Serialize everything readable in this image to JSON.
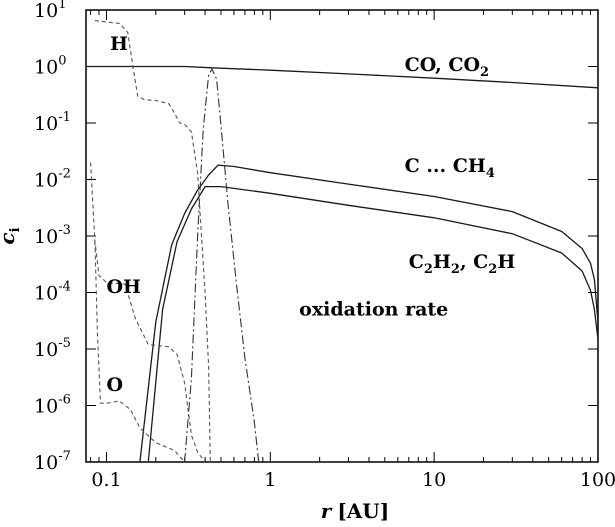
{
  "chart_data": {
    "type": "line",
    "title": "",
    "xlabel": {
      "var": "r",
      "unit": "[AU]"
    },
    "ylabel": {
      "base": "c",
      "sub": "i"
    },
    "xscale": "log",
    "yscale": "log",
    "xlim": [
      0.075,
      100
    ],
    "ylim": [
      1e-07,
      10
    ],
    "grid": false,
    "legend": "none",
    "x_ticks": [
      {
        "value": 0.1,
        "label": "0.1"
      },
      {
        "value": 1,
        "label": "1"
      },
      {
        "value": 10,
        "label": "10"
      },
      {
        "value": 100,
        "label": "100"
      }
    ],
    "y_ticks": [
      {
        "value": 10,
        "base": "10",
        "exp": "1"
      },
      {
        "value": 1,
        "base": "10",
        "exp": "0"
      },
      {
        "value": 0.1,
        "base": "10",
        "exp": "-1"
      },
      {
        "value": 0.01,
        "base": "10",
        "exp": "-2"
      },
      {
        "value": 0.001,
        "base": "10",
        "exp": "-3"
      },
      {
        "value": 0.0001,
        "base": "10",
        "exp": "-4"
      },
      {
        "value": 1e-05,
        "base": "10",
        "exp": "-5"
      },
      {
        "value": 1e-06,
        "base": "10",
        "exp": "-6"
      },
      {
        "value": 1e-07,
        "base": "10",
        "exp": "-7"
      }
    ],
    "annotations": [
      {
        "id": "H",
        "parts": [
          {
            "t": "H"
          }
        ],
        "x": 0.105,
        "y": 2.6
      },
      {
        "id": "CO",
        "parts": [
          {
            "t": "CO, CO"
          },
          {
            "t": "2",
            "sub": true
          }
        ],
        "x": 6.6,
        "y": 1.1
      },
      {
        "id": "C",
        "parts": [
          {
            "t": "C ... CH"
          },
          {
            "t": "4",
            "sub": true
          }
        ],
        "x": 6.6,
        "y": 0.018
      },
      {
        "id": "OH",
        "parts": [
          {
            "t": "OH"
          }
        ],
        "x": 0.1,
        "y": 0.00013
      },
      {
        "id": "C2H2",
        "parts": [
          {
            "t": "C"
          },
          {
            "t": "2",
            "sub": true
          },
          {
            "t": "H"
          },
          {
            "t": "2",
            "sub": true
          },
          {
            "t": ", C"
          },
          {
            "t": "2",
            "sub": true
          },
          {
            "t": "H"
          }
        ],
        "x": 7.0,
        "y": 0.00036
      },
      {
        "id": "ox",
        "parts": [
          {
            "t": "oxidation rate"
          }
        ],
        "x": 1.5,
        "y": 5.2e-05
      },
      {
        "id": "O",
        "parts": [
          {
            "t": "O"
          }
        ],
        "x": 0.1,
        "y": 2.4e-06
      }
    ],
    "series": [
      {
        "id": "co",
        "dash": "solid",
        "color": "#1a1a1a",
        "width": 1.3,
        "points": [
          [
            0.075,
            1.0
          ],
          [
            0.3,
            1.0
          ],
          [
            0.44,
            0.95
          ],
          [
            1,
            0.86
          ],
          [
            3,
            0.74
          ],
          [
            10,
            0.62
          ],
          [
            30,
            0.52
          ],
          [
            100,
            0.42
          ]
        ]
      },
      {
        "id": "c_ch4",
        "dash": "solid",
        "color": "#1a1a1a",
        "width": 1.3,
        "points": [
          [
            0.16,
            1e-07
          ],
          [
            0.2,
            3e-05
          ],
          [
            0.25,
            0.0007
          ],
          [
            0.3,
            0.0025
          ],
          [
            0.36,
            0.0065
          ],
          [
            0.42,
            0.012
          ],
          [
            0.48,
            0.018
          ],
          [
            0.6,
            0.017
          ],
          [
            1,
            0.0132
          ],
          [
            3,
            0.0083
          ],
          [
            10,
            0.005
          ],
          [
            30,
            0.0027
          ],
          [
            60,
            0.0012
          ],
          [
            80,
            0.0006
          ],
          [
            90,
            0.00033
          ],
          [
            95,
            0.00017
          ],
          [
            100,
            3e-05
          ]
        ]
      },
      {
        "id": "c2h2",
        "dash": "solid",
        "color": "#1a1a1a",
        "width": 1.3,
        "points": [
          [
            0.18,
            1e-07
          ],
          [
            0.22,
            5e-05
          ],
          [
            0.27,
            0.0008
          ],
          [
            0.33,
            0.003
          ],
          [
            0.4,
            0.0075
          ],
          [
            0.5,
            0.0075
          ],
          [
            1,
            0.0057
          ],
          [
            3,
            0.0035
          ],
          [
            10,
            0.0021
          ],
          [
            30,
            0.0011
          ],
          [
            60,
            0.0005
          ],
          [
            80,
            0.00024
          ],
          [
            90,
            0.00011
          ],
          [
            95,
            5e-05
          ],
          [
            100,
            1.5e-05
          ]
        ]
      },
      {
        "id": "oxidation",
        "dash": "9 3 2 3",
        "color": "#333333",
        "width": 1.1,
        "points": [
          [
            0.3,
            1e-07
          ],
          [
            0.33,
            3e-06
          ],
          [
            0.36,
            0.001
          ],
          [
            0.39,
            0.08
          ],
          [
            0.42,
            0.7
          ],
          [
            0.44,
            0.9
          ],
          [
            0.47,
            0.6
          ],
          [
            0.5,
            0.09
          ],
          [
            0.55,
            0.004
          ],
          [
            0.62,
            0.00015
          ],
          [
            0.7,
            7e-06
          ],
          [
            0.8,
            5e-07
          ],
          [
            0.85,
            1e-07
          ]
        ]
      },
      {
        "id": "h",
        "dash": "4 3",
        "color": "#555555",
        "width": 1.1,
        "points": [
          [
            0.085,
            6.5
          ],
          [
            0.12,
            5.8
          ],
          [
            0.135,
            4.0
          ],
          [
            0.145,
            1.0
          ],
          [
            0.155,
            0.3
          ],
          [
            0.17,
            0.26
          ],
          [
            0.2,
            0.25
          ],
          [
            0.24,
            0.22
          ],
          [
            0.26,
            0.15
          ],
          [
            0.28,
            0.1
          ],
          [
            0.3,
            0.095
          ],
          [
            0.33,
            0.07
          ],
          [
            0.36,
            0.013
          ],
          [
            0.38,
            0.001
          ],
          [
            0.4,
            0.0001
          ],
          [
            0.42,
            5e-06
          ],
          [
            0.43,
            1e-07
          ]
        ]
      },
      {
        "id": "oh",
        "dash": "4 3",
        "color": "#555555",
        "width": 1.1,
        "points": [
          [
            0.08,
            0.02
          ],
          [
            0.085,
            0.0008
          ],
          [
            0.09,
            0.0002
          ],
          [
            0.1,
            0.00015
          ],
          [
            0.13,
            0.00014
          ],
          [
            0.15,
            3.5e-05
          ],
          [
            0.18,
            1.2e-05
          ],
          [
            0.24,
            1.1e-05
          ],
          [
            0.27,
            8e-06
          ],
          [
            0.3,
            2.5e-06
          ],
          [
            0.33,
            3e-07
          ],
          [
            0.36,
            1.5e-07
          ],
          [
            0.4,
            1e-07
          ]
        ]
      },
      {
        "id": "o",
        "dash": "4 3",
        "color": "#555555",
        "width": 1.1,
        "points": [
          [
            0.085,
            0.0008
          ],
          [
            0.088,
            2e-05
          ],
          [
            0.092,
            1.1e-06
          ],
          [
            0.1,
            1.1e-06
          ],
          [
            0.12,
            1.2e-06
          ],
          [
            0.14,
            8.5e-07
          ],
          [
            0.16,
            4e-07
          ],
          [
            0.2,
            2.2e-07
          ],
          [
            0.26,
            1.6e-07
          ],
          [
            0.3,
            1e-07
          ]
        ]
      }
    ]
  }
}
